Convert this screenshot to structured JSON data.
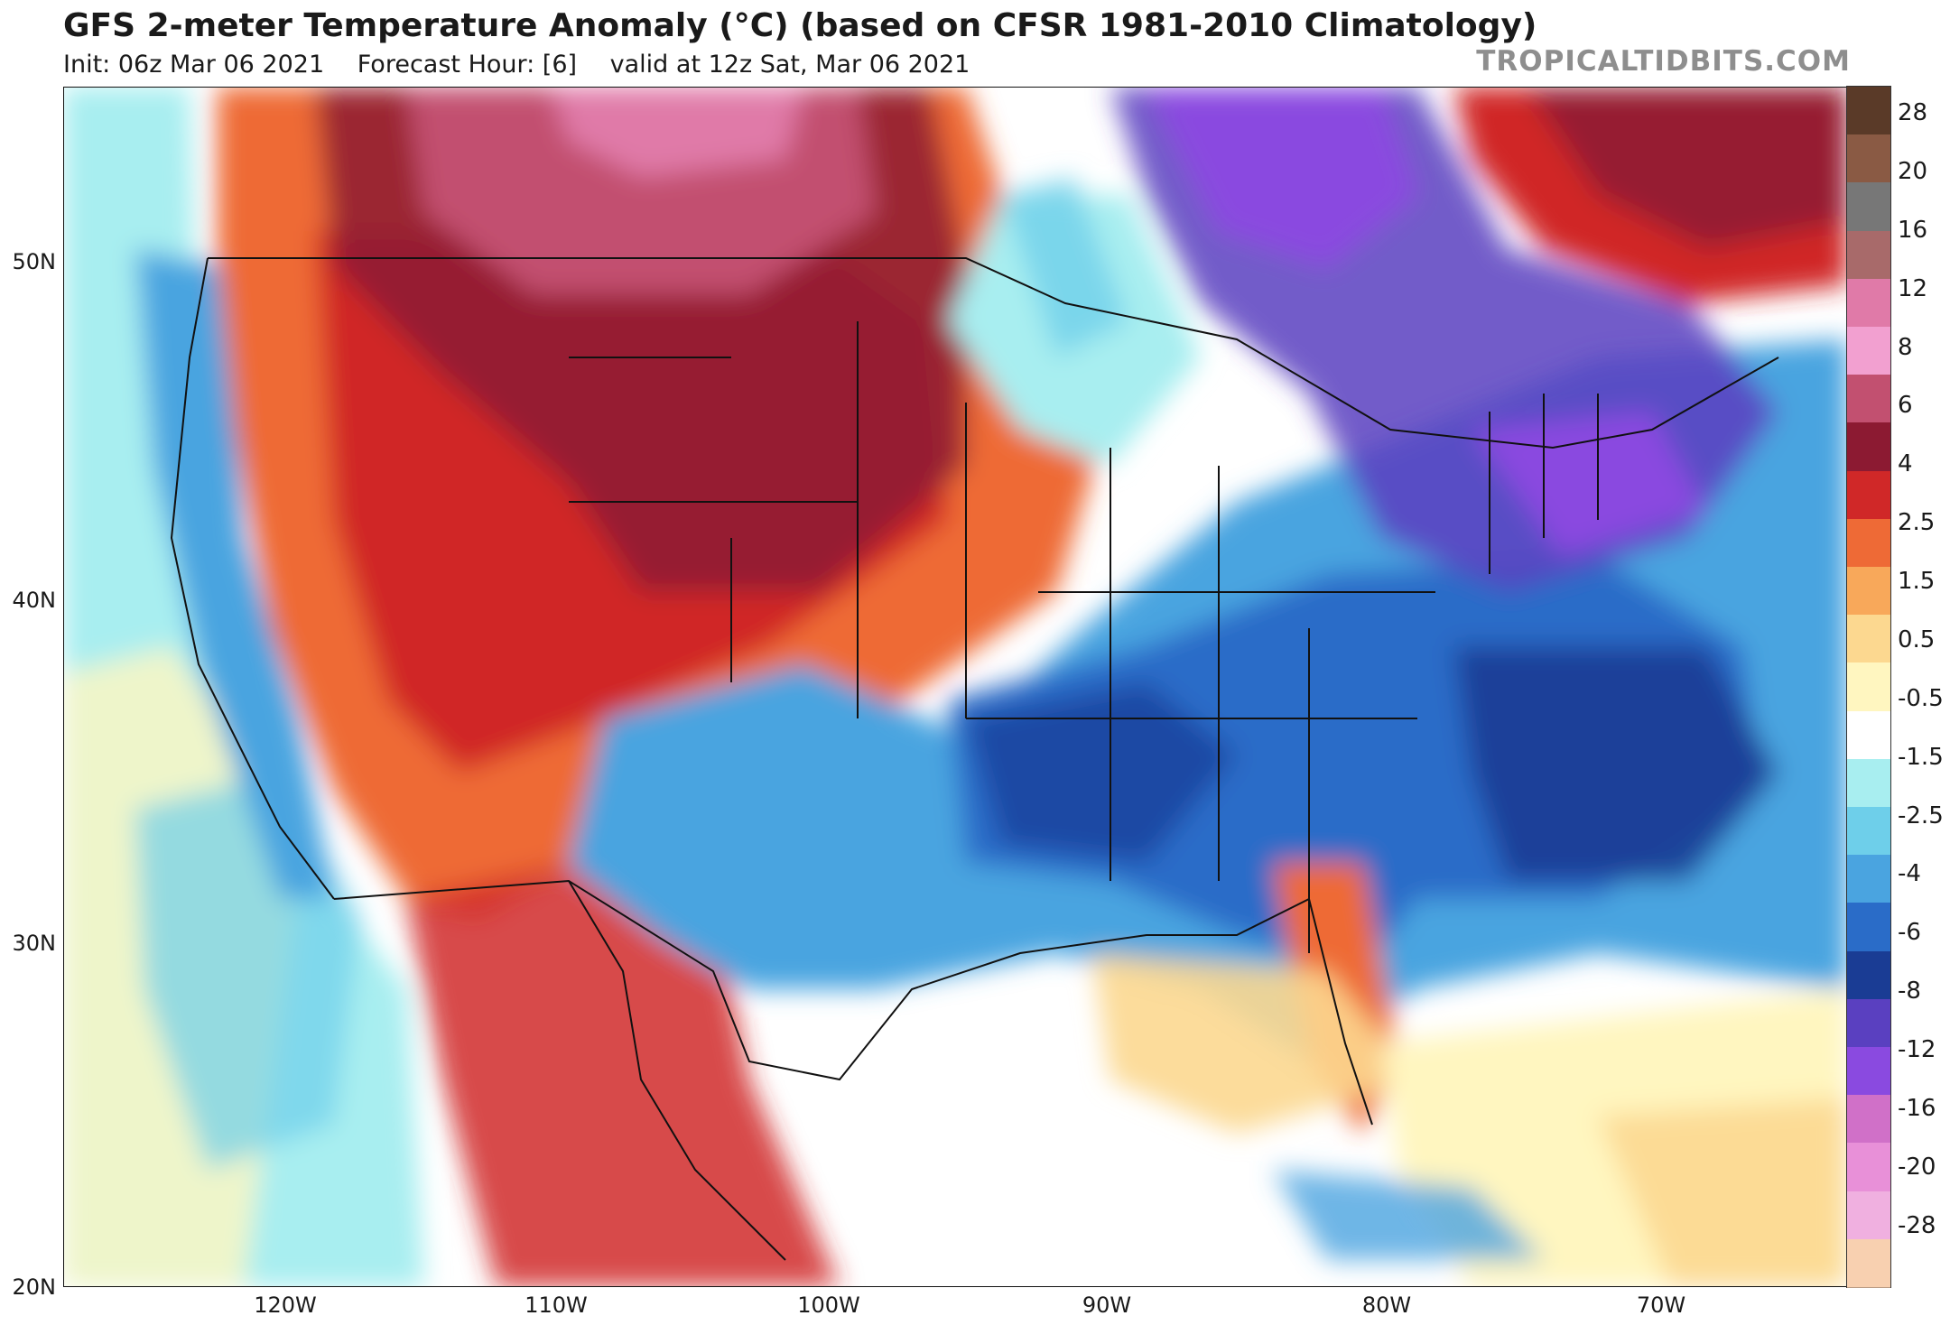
{
  "header": {
    "title": "GFS 2-meter Temperature Anomaly (°C) (based on CFSR 1981-2010 Climatology)",
    "init": "Init: 06z Mar 06 2021",
    "forecast_hour": "Forecast Hour: [6]",
    "valid": "valid at 12z Sat, Mar 06 2021",
    "brand": "TROPICALTIDBITS.COM"
  },
  "axes": {
    "lat_ticks": [
      "50N",
      "40N",
      "30N",
      "20N"
    ],
    "lon_ticks": [
      "120W",
      "110W",
      "100W",
      "90W",
      "80W",
      "70W"
    ]
  },
  "legend": {
    "labels": [
      "28",
      "20",
      "16",
      "12",
      "8",
      "6",
      "4",
      "2.5",
      "1.5",
      "0.5",
      "-0.5",
      "-1.5",
      "-2.5",
      "-4",
      "-6",
      "-8",
      "-12",
      "-16",
      "-20",
      "-28"
    ],
    "colors": [
      "#5a3a28",
      "#8a5a44",
      "#777777",
      "#a86a6a",
      "#e07aa8",
      "#f2a0d0",
      "#c25070",
      "#8c1a32",
      "#d02828",
      "#ee6a36",
      "#f8a85a",
      "#fcd890",
      "#fff6c0",
      "#ffffff",
      "#a8eef0",
      "#6ecfea",
      "#4aa4e0",
      "#2a6cc8",
      "#1a3c94",
      "#5a40c0",
      "#8a4ae0",
      "#d070c8",
      "#e890d8",
      "#f0b0e0",
      "#f8d0b0"
    ]
  },
  "map": {
    "colors": {
      "ocean_white": "#ffffff",
      "pale_yellow": "#fff6c0",
      "light_cyan": "#a8eef0",
      "blue": "#4aa4e0",
      "dark_blue": "#2a6cc8",
      "navy": "#1a3c94",
      "purple": "#8a4ae0",
      "red": "#d02828",
      "dark_red": "#8c1a32",
      "orange": "#ee6a36",
      "pink": "#e07aa8"
    }
  }
}
